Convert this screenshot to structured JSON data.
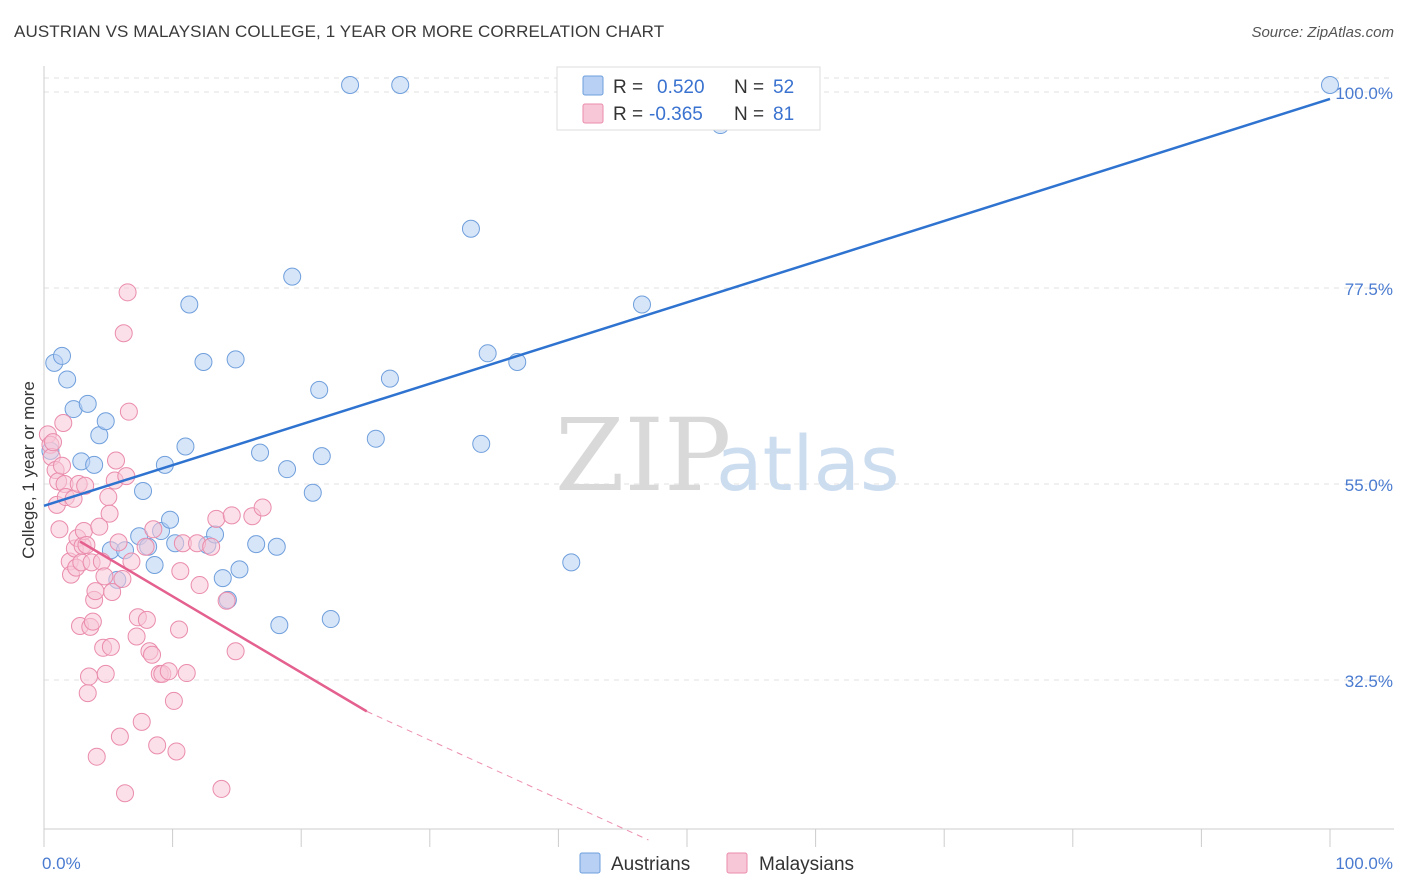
{
  "title": "AUSTRIAN VS MALAYSIAN COLLEGE, 1 YEAR OR MORE CORRELATION CHART",
  "source": "Source: ZipAtlas.com",
  "watermark": {
    "zip": "ZIP",
    "atlas": "atlas"
  },
  "colors": {
    "austrians_fill": "#b7d0f4",
    "austrians_stroke": "#6f9fdc",
    "austrians_line": "#2f73d0",
    "malaysians_fill": "#f8c7d7",
    "malaysians_stroke": "#ea8cab",
    "malaysians_line": "#e4608e",
    "grid": "#e0e0e0",
    "axis_label": "#4a7bd0"
  },
  "legend": {
    "items": [
      {
        "r_label": "R =",
        "r_value": "0.520",
        "n_label": "N =",
        "n_value": "52"
      },
      {
        "r_label": "R =",
        "r_value": "-0.365",
        "n_label": "N =",
        "n_value": "81"
      }
    ]
  },
  "chart_data": {
    "type": "scatter",
    "title": "AUSTRIAN VS MALAYSIAN COLLEGE, 1 YEAR OR MORE CORRELATION CHART",
    "xlabel": "",
    "ylabel": "College, 1 year or more",
    "xlim": [
      0,
      100
    ],
    "ylim": [
      15.4,
      101.6
    ],
    "x_tick_labels": [
      "0.0%",
      "100.0%"
    ],
    "y_ticks": [
      32.5,
      55.0,
      77.5,
      100.0
    ],
    "y_tick_labels": [
      "32.5%",
      "55.0%",
      "77.5%",
      "100.0%"
    ],
    "legend_position": "bottom-center",
    "series": [
      {
        "name": "Austrians",
        "r": 0.52,
        "n": 52,
        "trend": {
          "x": [
            0,
            100
          ],
          "y": [
            52.5,
            99.2
          ]
        },
        "points": [
          {
            "x": 0.8,
            "y": 68.9
          },
          {
            "x": 1.4,
            "y": 69.7
          },
          {
            "x": 1.8,
            "y": 67.0
          },
          {
            "x": 2.3,
            "y": 63.6
          },
          {
            "x": 2.9,
            "y": 57.6
          },
          {
            "x": 3.4,
            "y": 64.2
          },
          {
            "x": 3.9,
            "y": 57.2
          },
          {
            "x": 4.3,
            "y": 60.6
          },
          {
            "x": 4.8,
            "y": 62.2
          },
          {
            "x": 5.2,
            "y": 47.4
          },
          {
            "x": 5.7,
            "y": 44.0
          },
          {
            "x": 6.3,
            "y": 47.4
          },
          {
            "x": 7.4,
            "y": 49.0
          },
          {
            "x": 7.7,
            "y": 54.2
          },
          {
            "x": 8.1,
            "y": 47.8
          },
          {
            "x": 8.6,
            "y": 45.7
          },
          {
            "x": 9.1,
            "y": 49.6
          },
          {
            "x": 9.4,
            "y": 57.2
          },
          {
            "x": 9.8,
            "y": 50.9
          },
          {
            "x": 10.2,
            "y": 48.2
          },
          {
            "x": 11.0,
            "y": 59.3
          },
          {
            "x": 11.3,
            "y": 75.6
          },
          {
            "x": 12.4,
            "y": 69.0
          },
          {
            "x": 12.7,
            "y": 48.0
          },
          {
            "x": 13.3,
            "y": 49.2
          },
          {
            "x": 13.9,
            "y": 44.2
          },
          {
            "x": 14.3,
            "y": 41.7
          },
          {
            "x": 14.9,
            "y": 69.3
          },
          {
            "x": 15.2,
            "y": 45.2
          },
          {
            "x": 16.5,
            "y": 48.1
          },
          {
            "x": 16.8,
            "y": 58.6
          },
          {
            "x": 18.1,
            "y": 47.8
          },
          {
            "x": 18.3,
            "y": 38.8
          },
          {
            "x": 18.9,
            "y": 56.7
          },
          {
            "x": 19.3,
            "y": 78.8
          },
          {
            "x": 20.9,
            "y": 54.0
          },
          {
            "x": 21.4,
            "y": 65.8
          },
          {
            "x": 21.6,
            "y": 58.2
          },
          {
            "x": 22.3,
            "y": 39.5
          },
          {
            "x": 23.8,
            "y": 100.8
          },
          {
            "x": 25.8,
            "y": 60.2
          },
          {
            "x": 26.9,
            "y": 67.1
          },
          {
            "x": 27.7,
            "y": 100.8
          },
          {
            "x": 33.2,
            "y": 84.3
          },
          {
            "x": 34.0,
            "y": 59.6
          },
          {
            "x": 34.5,
            "y": 70.0
          },
          {
            "x": 36.8,
            "y": 69.0
          },
          {
            "x": 41.0,
            "y": 46.0
          },
          {
            "x": 46.5,
            "y": 75.6
          },
          {
            "x": 52.6,
            "y": 96.2
          },
          {
            "x": 100.0,
            "y": 100.8
          },
          {
            "x": 0.5,
            "y": 58.8
          }
        ]
      },
      {
        "name": "Malaysians",
        "r": -0.365,
        "n": 81,
        "trend": {
          "x": [
            2.8,
            25.1
          ],
          "y": [
            48.4,
            28.9
          ]
        },
        "trend_dashed": {
          "x": [
            25.1,
            47.0
          ],
          "y": [
            28.9,
            10.1
          ]
        },
        "points": [
          {
            "x": 0.3,
            "y": 60.7
          },
          {
            "x": 0.5,
            "y": 59.5
          },
          {
            "x": 0.6,
            "y": 58.1
          },
          {
            "x": 0.7,
            "y": 59.8
          },
          {
            "x": 0.9,
            "y": 56.6
          },
          {
            "x": 1.0,
            "y": 52.6
          },
          {
            "x": 1.1,
            "y": 55.3
          },
          {
            "x": 1.2,
            "y": 49.8
          },
          {
            "x": 1.4,
            "y": 57.1
          },
          {
            "x": 1.5,
            "y": 62.0
          },
          {
            "x": 1.6,
            "y": 55.0
          },
          {
            "x": 1.7,
            "y": 53.5
          },
          {
            "x": 2.0,
            "y": 46.1
          },
          {
            "x": 2.1,
            "y": 44.6
          },
          {
            "x": 2.3,
            "y": 53.3
          },
          {
            "x": 2.4,
            "y": 47.6
          },
          {
            "x": 2.5,
            "y": 45.4
          },
          {
            "x": 2.6,
            "y": 48.8
          },
          {
            "x": 2.7,
            "y": 55.0
          },
          {
            "x": 2.8,
            "y": 38.7
          },
          {
            "x": 2.9,
            "y": 46.0
          },
          {
            "x": 3.0,
            "y": 47.9
          },
          {
            "x": 3.1,
            "y": 49.6
          },
          {
            "x": 3.2,
            "y": 54.8
          },
          {
            "x": 3.3,
            "y": 48.0
          },
          {
            "x": 3.4,
            "y": 31.0
          },
          {
            "x": 3.5,
            "y": 32.9
          },
          {
            "x": 3.6,
            "y": 38.6
          },
          {
            "x": 3.7,
            "y": 46.0
          },
          {
            "x": 3.8,
            "y": 39.2
          },
          {
            "x": 3.9,
            "y": 41.7
          },
          {
            "x": 4.0,
            "y": 42.7
          },
          {
            "x": 4.1,
            "y": 23.7
          },
          {
            "x": 4.3,
            "y": 50.1
          },
          {
            "x": 4.5,
            "y": 46.1
          },
          {
            "x": 4.6,
            "y": 36.2
          },
          {
            "x": 4.7,
            "y": 44.4
          },
          {
            "x": 4.8,
            "y": 33.2
          },
          {
            "x": 5.0,
            "y": 53.5
          },
          {
            "x": 5.1,
            "y": 51.6
          },
          {
            "x": 5.2,
            "y": 36.3
          },
          {
            "x": 5.3,
            "y": 42.6
          },
          {
            "x": 5.5,
            "y": 55.4
          },
          {
            "x": 5.6,
            "y": 57.7
          },
          {
            "x": 5.8,
            "y": 48.3
          },
          {
            "x": 5.9,
            "y": 26.0
          },
          {
            "x": 6.1,
            "y": 44.1
          },
          {
            "x": 6.2,
            "y": 72.3
          },
          {
            "x": 6.3,
            "y": 19.5
          },
          {
            "x": 6.4,
            "y": 55.9
          },
          {
            "x": 6.5,
            "y": 77.0
          },
          {
            "x": 6.6,
            "y": 63.3
          },
          {
            "x": 6.8,
            "y": 46.1
          },
          {
            "x": 7.2,
            "y": 37.5
          },
          {
            "x": 7.3,
            "y": 39.7
          },
          {
            "x": 7.6,
            "y": 27.7
          },
          {
            "x": 7.9,
            "y": 47.8
          },
          {
            "x": 8.0,
            "y": 39.4
          },
          {
            "x": 8.2,
            "y": 35.8
          },
          {
            "x": 8.4,
            "y": 35.4
          },
          {
            "x": 8.5,
            "y": 49.8
          },
          {
            "x": 8.8,
            "y": 25.0
          },
          {
            "x": 9.0,
            "y": 33.2
          },
          {
            "x": 9.2,
            "y": 33.2
          },
          {
            "x": 9.7,
            "y": 33.5
          },
          {
            "x": 10.1,
            "y": 30.1
          },
          {
            "x": 10.3,
            "y": 24.3
          },
          {
            "x": 10.5,
            "y": 38.3
          },
          {
            "x": 10.6,
            "y": 45.0
          },
          {
            "x": 10.8,
            "y": 48.2
          },
          {
            "x": 11.1,
            "y": 33.3
          },
          {
            "x": 11.9,
            "y": 48.2
          },
          {
            "x": 12.1,
            "y": 43.4
          },
          {
            "x": 13.0,
            "y": 47.8
          },
          {
            "x": 13.4,
            "y": 51.0
          },
          {
            "x": 13.8,
            "y": 20.0
          },
          {
            "x": 14.2,
            "y": 41.6
          },
          {
            "x": 14.6,
            "y": 51.4
          },
          {
            "x": 14.9,
            "y": 35.8
          },
          {
            "x": 16.2,
            "y": 51.3
          },
          {
            "x": 17.0,
            "y": 52.3
          }
        ]
      }
    ]
  }
}
